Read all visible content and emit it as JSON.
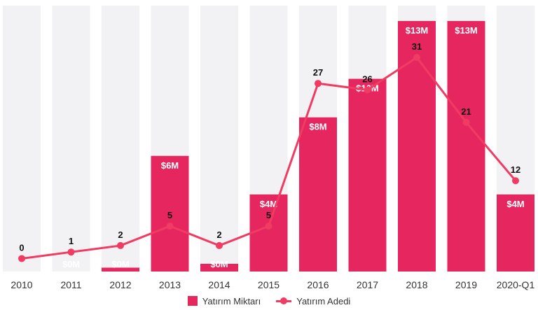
{
  "chart_data": {
    "type": "bar+line",
    "categories": [
      "2010",
      "2011",
      "2012",
      "2013",
      "2014",
      "2015",
      "2016",
      "2017",
      "2018",
      "2019",
      "2020-Q1"
    ],
    "series": [
      {
        "name": "Yatırım Miktarı",
        "kind": "bar",
        "values": [
          0,
          0,
          0.2,
          6,
          0.4,
          4,
          8,
          10,
          13,
          13,
          4
        ],
        "labels": [
          "",
          "$0M",
          "$0M",
          "$6M",
          "$0M",
          "$4M",
          "$8M",
          "$10M",
          "$13M",
          "$13M",
          "$4M"
        ],
        "color": "#e5265f"
      },
      {
        "name": "Yatırım Adedi",
        "kind": "line",
        "values": [
          0,
          1,
          2,
          5,
          2,
          5,
          27,
          26,
          31,
          21,
          12
        ],
        "color": "#f03b62"
      }
    ],
    "ylim_bar": [
      0,
      13.8
    ],
    "ylim_line": [
      -2,
      39
    ],
    "background_bar_color": "#f2f2f4",
    "grid": false,
    "legend_position": "bottom-center"
  },
  "legend": {
    "bar_label": "Yatırım Miktarı",
    "line_label": "Yatırım Adedi"
  }
}
